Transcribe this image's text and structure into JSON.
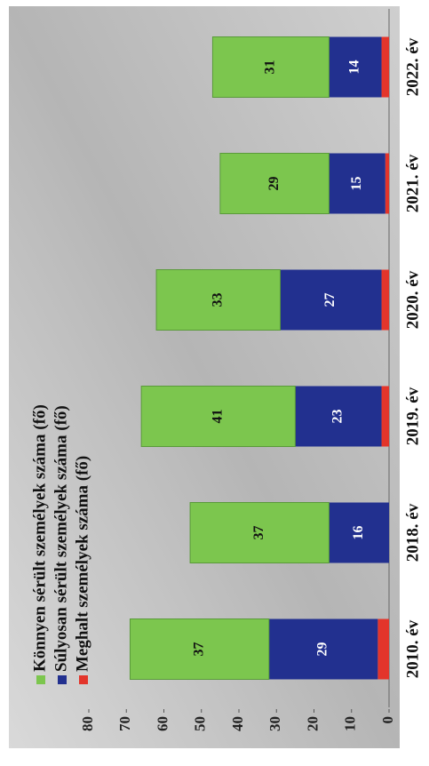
{
  "chart_data": {
    "type": "bar",
    "stacked": true,
    "categories": [
      "2010. év",
      "2018. év",
      "2019. év",
      "2020. év",
      "2021. év",
      "2022. év"
    ],
    "series": [
      {
        "name": "Meghalt személyek száma (fő)",
        "color": "#e3352b",
        "values": [
          3,
          0,
          2,
          2,
          1,
          2
        ]
      },
      {
        "name": "Súlyosan sérült személyek száma (fő)",
        "color": "#22308f",
        "values": [
          29,
          16,
          23,
          27,
          15,
          14
        ]
      },
      {
        "name": "Könnyen sérült személyek száma (fő)",
        "color": "#7cc64e",
        "values": [
          37,
          37,
          41,
          33,
          29,
          31
        ]
      }
    ],
    "ylim": [
      0,
      80
    ],
    "yticks": [
      0,
      10,
      20,
      30,
      40,
      50,
      60,
      70,
      80
    ]
  }
}
